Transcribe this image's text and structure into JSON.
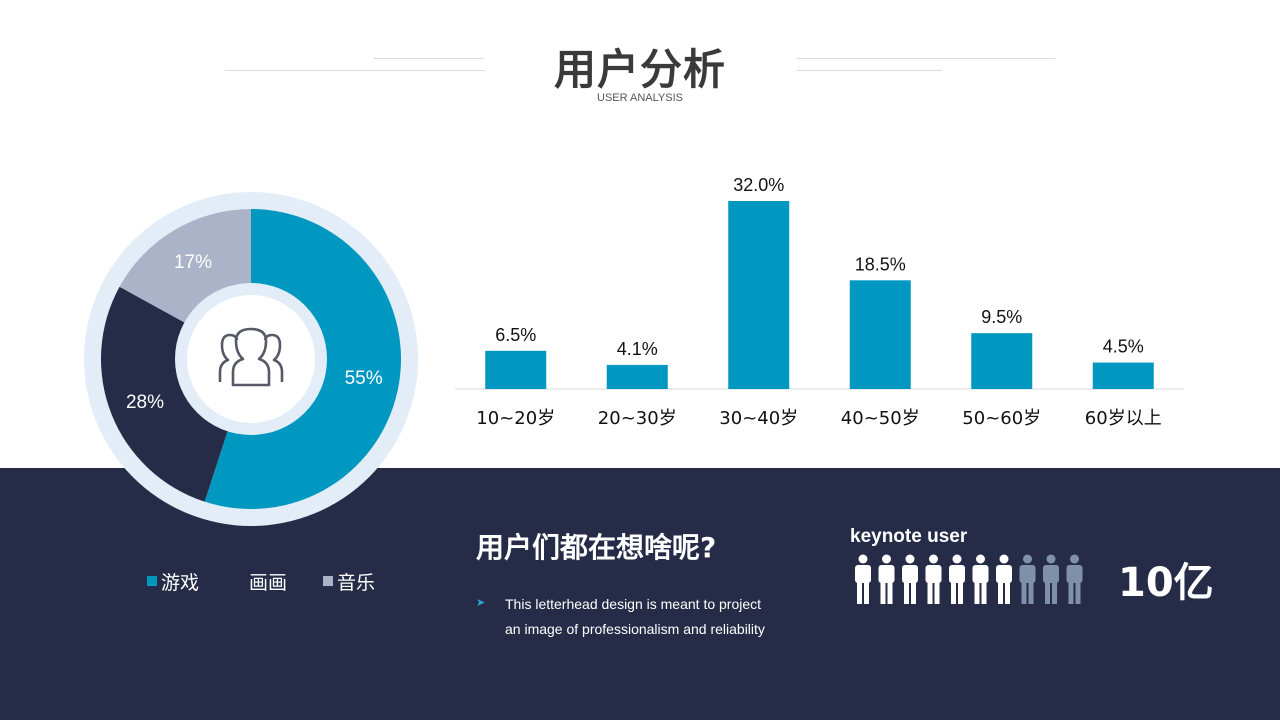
{
  "header": {
    "title": "用户分析",
    "subtitle": "USER ANALYSIS"
  },
  "colors": {
    "primary": "#0097c0",
    "dark": "#262c48",
    "grey": "#aab3c8",
    "ring": "#e3edf7",
    "person_highlight": "#ffffff",
    "person_muted": "#8090ab"
  },
  "chart_data": [
    {
      "type": "pie",
      "variant": "donut",
      "center_icon": "users-icon",
      "slices": [
        {
          "name": "游戏",
          "value": 55,
          "label": "55%",
          "color": "#0097c0"
        },
        {
          "name": "画画",
          "value": 28,
          "label": "28%",
          "color": "#262c48"
        },
        {
          "name": "音乐",
          "value": 17,
          "label": "17%",
          "color": "#aab3c8"
        }
      ],
      "legend": {
        "placement": "bottom"
      }
    },
    {
      "type": "bar",
      "categories": [
        "10~20岁",
        "20~30岁",
        "30~40岁",
        "40~50岁",
        "50~60岁",
        "60岁以上"
      ],
      "values": [
        6.5,
        4.1,
        32.0,
        18.5,
        9.5,
        4.5
      ],
      "value_labels": [
        "6.5%",
        "4.1%",
        "32.0%",
        "18.5%",
        "9.5%",
        "4.5%"
      ],
      "ylim": [
        0,
        32.0
      ],
      "grid": false,
      "color": "#0097c0"
    }
  ],
  "question": {
    "title": "用户们都在想啥呢?",
    "line1": "This letterhead design is meant to project",
    "line2": "an image of professionalism and reliability"
  },
  "users": {
    "label": "keynote user",
    "total_icons": 10,
    "highlighted_icons": 7,
    "icon": "person-icon",
    "value": "10亿"
  }
}
